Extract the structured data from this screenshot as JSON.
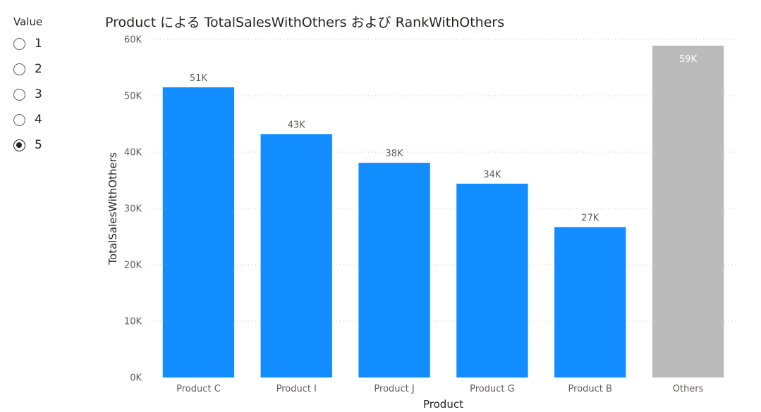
{
  "slicer": {
    "title": "Value",
    "options": [
      "1",
      "2",
      "3",
      "4",
      "5"
    ],
    "selected": "5"
  },
  "colors": {
    "bar": "#118dff",
    "others": "#bbbbbb",
    "gridline": "#c8c6c4"
  },
  "chart_data": {
    "type": "bar",
    "title": "Product による TotalSalesWithOthers および RankWithOthers",
    "xlabel": "Product",
    "ylabel": "TotalSalesWithOthers",
    "categories": [
      "Product C",
      "Product I",
      "Product J",
      "Product G",
      "Product B",
      "Others"
    ],
    "values": [
      51500,
      43200,
      38100,
      34400,
      26700,
      58900
    ],
    "data_labels": [
      "51K",
      "43K",
      "38K",
      "34K",
      "27K",
      "59K"
    ],
    "ylim": [
      0,
      60000
    ],
    "yticks": [
      0,
      10000,
      20000,
      30000,
      40000,
      50000,
      60000
    ],
    "ytick_labels": [
      "0K",
      "10K",
      "20K",
      "30K",
      "40K",
      "50K",
      "60K"
    ],
    "grid": true,
    "legend": false
  }
}
